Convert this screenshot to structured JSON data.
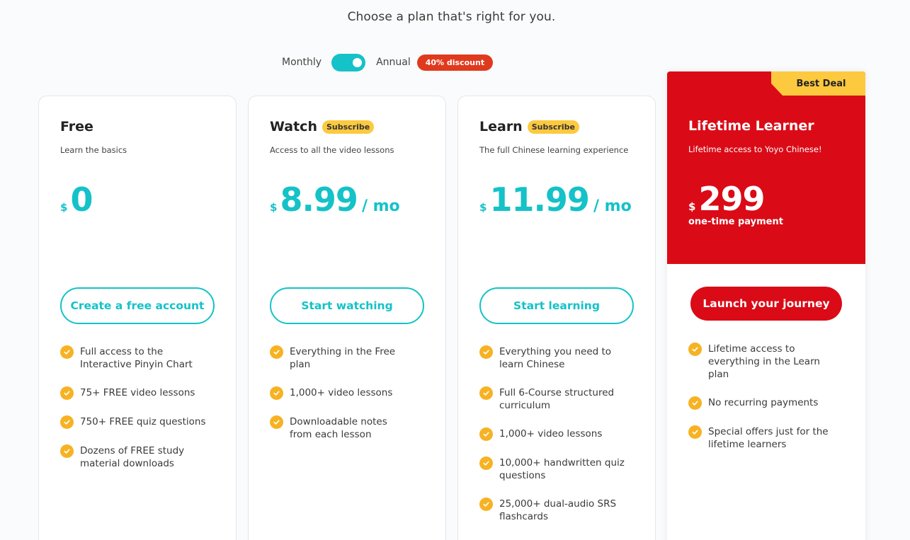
{
  "heading": "Choose a plan that's right for you.",
  "billing": {
    "monthly_label": "Monthly",
    "annual_label": "Annual",
    "discount_badge": "40% discount",
    "toggle_state": "annual"
  },
  "colors": {
    "teal": "#14c2c8",
    "red": "#da0b17",
    "yellow": "#fcc93f",
    "check": "#f7b223",
    "discount": "#e03a1e"
  },
  "plans": [
    {
      "name": "Free",
      "badge": "",
      "tagline": "Learn the basics",
      "currency": "$",
      "price": "0",
      "period": "",
      "cta": "Create a free account",
      "features": [
        [
          "Full access to the",
          "Interactive Pinyin Chart"
        ],
        [
          "75+ FREE video lessons"
        ],
        [
          "750+ FREE quiz questions"
        ],
        [
          "Dozens of FREE study",
          "material downloads"
        ]
      ]
    },
    {
      "name": "Watch",
      "badge": "Subscribe",
      "tagline": "Access to all the video lessons",
      "currency": "$",
      "price": "8.99",
      "period": "/ mo",
      "cta": "Start watching",
      "features": [
        [
          "Everything in the Free",
          "plan"
        ],
        [
          "1,000+ video lessons"
        ],
        [
          "Downloadable notes",
          "from each lesson"
        ]
      ]
    },
    {
      "name": "Learn",
      "badge": "Subscribe",
      "tagline": "The full Chinese learning experience",
      "currency": "$",
      "price": "11.99",
      "period": "/ mo",
      "cta": "Start learning",
      "features": [
        [
          "Everything you need to",
          "learn Chinese"
        ],
        [
          "Full 6-Course structured",
          "curriculum"
        ],
        [
          "1,000+ video lessons"
        ],
        [
          "10,000+ handwritten quiz",
          "questions"
        ],
        [
          "25,000+ dual-audio SRS",
          "flashcards"
        ]
      ]
    },
    {
      "name": "Lifetime Learner",
      "ribbon": "Best Deal",
      "tagline": "Lifetime access to Yoyo Chinese!",
      "currency": "$",
      "price": "299",
      "price_note": "one-time payment",
      "cta": "Launch your journey",
      "features": [
        [
          "Lifetime access to",
          "everything in the Learn",
          "plan"
        ],
        [
          "No recurring payments"
        ],
        [
          "Special offers just for the",
          "lifetime learners"
        ]
      ]
    }
  ]
}
